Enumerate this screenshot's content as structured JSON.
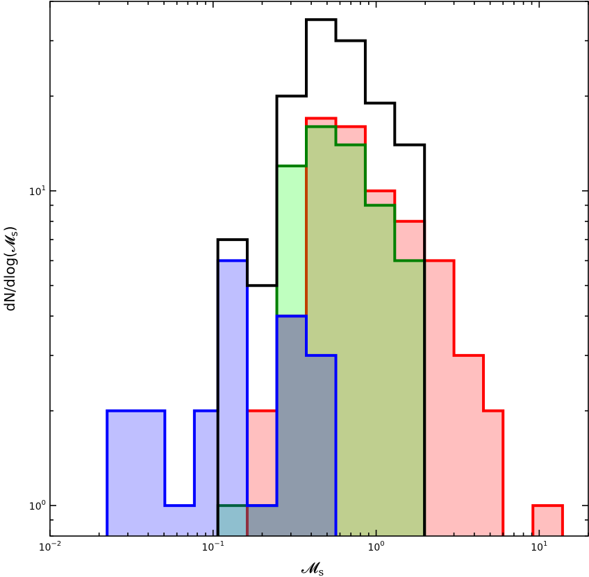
{
  "chart_data": {
    "type": "histogram",
    "title": "",
    "xlabel": "𝓜",
    "xlabel_sub": "s",
    "ylabel": "dN/dlog(𝓜",
    "ylabel_sub": "s",
    "ylabel_tail": ")",
    "xscale": "log",
    "yscale": "log",
    "xlim": [
      0.01,
      20
    ],
    "ylim": [
      0.8,
      40
    ],
    "grid": false,
    "x_ticks": [
      {
        "base": "10",
        "exp": "−2",
        "value": 0.01
      },
      {
        "base": "10",
        "exp": "−1",
        "value": 0.1
      },
      {
        "base": "10",
        "exp": "0",
        "value": 1
      },
      {
        "base": "10",
        "exp": "1",
        "value": 10
      }
    ],
    "y_ticks": [
      {
        "base": "10",
        "exp": "0",
        "value": 1
      },
      {
        "base": "10",
        "exp": "1",
        "value": 10
      }
    ],
    "series": [
      {
        "color": "#ff0000",
        "fill": "#ffbfbf",
        "filled": true,
        "edges": [
          0.162,
          0.246,
          0.373,
          0.566,
          0.858,
          1.3,
          1.98,
          3.0,
          4.55,
          6.0
        ],
        "counts": [
          2,
          4,
          17,
          16,
          10,
          8,
          6,
          3,
          2
        ]
      },
      {
        "color": "#ff0000",
        "fill": "#ffbfbf",
        "filled": true,
        "edges": [
          9.15,
          13.9
        ],
        "counts": [
          1
        ]
      },
      {
        "color": "#008000",
        "fill": "#00ff00",
        "fill_opacity": 0.25,
        "filled": true,
        "edges": [
          0.107,
          0.162,
          0.246,
          0.373,
          0.566,
          0.858,
          1.3,
          1.98
        ],
        "counts": [
          1,
          1,
          12,
          16,
          14,
          9,
          6
        ]
      },
      {
        "color": "#0000ff",
        "fill": "#0000ff",
        "fill_opacity": 0.25,
        "filled": true,
        "edges": [
          0.0224,
          0.0506,
          0.0768,
          0.107,
          0.162,
          0.246,
          0.373,
          0.566
        ],
        "counts": [
          2,
          1,
          2,
          6,
          1,
          4,
          3
        ]
      },
      {
        "color": "#000000",
        "filled": false,
        "edges": [
          0.107,
          0.162,
          0.246,
          0.373,
          0.566,
          0.858,
          1.3,
          1.98
        ],
        "counts": [
          7,
          5,
          20,
          35,
          30,
          19,
          14
        ]
      }
    ]
  }
}
